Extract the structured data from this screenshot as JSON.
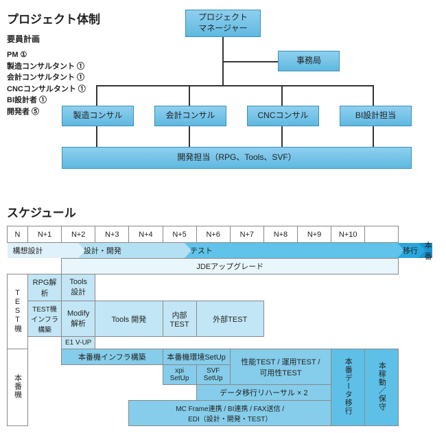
{
  "title_org": "プロジェクト体制",
  "subhead": "要員計画",
  "roles": [
    "PM ①",
    "製造コンサルタント ①",
    "会計コンサルタント ①",
    "CNCコンサルタント ①",
    "BI設計者 ①",
    "開発者 ⑤"
  ],
  "org": {
    "pm": "プロジェクト\nマネージャー",
    "office": "事務局",
    "consultants": [
      "製造コンサル",
      "会計コンサル",
      "CNCコンサル",
      "BI設計担当"
    ],
    "dev": "開発担当（RPG、Tools、SVF）",
    "node_fill_top": "#8fcff0",
    "node_fill_bottom": "#5fb9e0",
    "node_border": "#3a8fb7",
    "line_color": "#333333"
  },
  "title_sched": "スケジュール",
  "timeline": [
    "N",
    "N+1",
    "N+2",
    "N+3",
    "N+4",
    "N+5",
    "N+6",
    "N+7",
    "N+8",
    "N+9",
    "N+10",
    ""
  ],
  "phases": [
    {
      "label": "構想設計",
      "span": 2,
      "bg": "#dff1fa",
      "arrow": "#dff1fa"
    },
    {
      "label": "設計・開発",
      "span": 3,
      "bg": "#b4e0f4",
      "arrow": "#b4e0f4"
    },
    {
      "label": "テスト",
      "span": 6,
      "bg": "#5fc3ea",
      "arrow": "#5fc3ea"
    },
    {
      "label": "移行",
      "span": 0.6,
      "bg": "#2aa8dd",
      "arrow": "#2aa8dd"
    },
    {
      "label": "本番",
      "span": 0.4,
      "bg": "#1a94ce",
      "arrow": "none"
    }
  ],
  "rows": {
    "jde": "JDEアップグレード",
    "test_label": "TEST機",
    "prod_label": "本番機",
    "rpg": "RPG解析",
    "tools_design": "Tools\n設計",
    "test_infra": "TEST機\nインフラ\n構築",
    "modify": "Modify\n解析",
    "tools_dev": "Tools 開発",
    "internal_test": "内部\nTEST",
    "external_test": "外部TEST",
    "e1vup": "E1 V-UP",
    "prod_infra": "本番機インフラ構築",
    "prod_env": "本番機環境SetUp",
    "perf_test": "性能TEST / 運用TEST /\n可用性TEST",
    "xpi": "xpi\nSetUp",
    "svf": "SVF\nSetUp",
    "rehearsal": "データ移行リハーサル × 2",
    "mcframe": "MC Frame連携 / BI連携 / FAX送信 /\nEDI（設計・開発・TEST）",
    "data_mig": "本番データ移行",
    "go_live": "本稼動／保守"
  },
  "colors": {
    "light": "#e9f6fc",
    "mid": "#c2e6f5",
    "strong": "#85cdea",
    "stronger": "#5fc0e7",
    "border": "#888888",
    "col_width": 51.6
  }
}
